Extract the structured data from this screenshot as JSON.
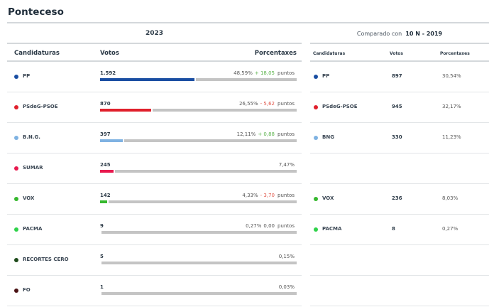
{
  "title": "Ponteceso",
  "current": {
    "year": "2023",
    "headers": {
      "parties": "Candidaturas",
      "votes": "Votos",
      "pct": "Porcentaxes"
    },
    "rows": [
      {
        "name": "PP",
        "color": "#1a4ea2",
        "votes": "1.592",
        "pct": "48,59%",
        "pct_value": 48.59,
        "diff": "+ 18,05",
        "diff_sign": "pos",
        "unit": "puntos"
      },
      {
        "name": "PSdeG-PSOE",
        "color": "#e0202c",
        "votes": "870",
        "pct": "26,55%",
        "pct_value": 26.55,
        "diff": "- 5,62",
        "diff_sign": "neg",
        "unit": "puntos"
      },
      {
        "name": "B.N.G.",
        "color": "#7fb2e2",
        "votes": "397",
        "pct": "12,11%",
        "pct_value": 12.11,
        "diff": "+ 0,88",
        "diff_sign": "pos",
        "unit": "puntos"
      },
      {
        "name": "SUMAR",
        "color": "#e8194e",
        "votes": "245",
        "pct": "7,47%",
        "pct_value": 7.47,
        "diff": "",
        "diff_sign": "",
        "unit": ""
      },
      {
        "name": "VOX",
        "color": "#36b82e",
        "votes": "142",
        "pct": "4,33%",
        "pct_value": 4.33,
        "diff": "- 3,70",
        "diff_sign": "neg",
        "unit": "puntos"
      },
      {
        "name": "PACMA",
        "color": "#2fd24a",
        "votes": "9",
        "pct": "0,27%",
        "pct_value": 0.27,
        "diff": "0,00",
        "diff_sign": "zero",
        "unit": "puntos"
      },
      {
        "name": "RECORTES CERO",
        "color": "#1d4a1a",
        "votes": "5",
        "pct": "0,15%",
        "pct_value": 0.15,
        "diff": "",
        "diff_sign": "",
        "unit": ""
      },
      {
        "name": "FO",
        "color": "#4a1214",
        "votes": "1",
        "pct": "0,03%",
        "pct_value": 0.03,
        "diff": "",
        "diff_sign": "",
        "unit": ""
      }
    ]
  },
  "compare": {
    "label": "Comparado con",
    "election": "10 N - 2019",
    "headers": {
      "parties": "Candidaturas",
      "votes": "Votos",
      "pct": "Porcentaxes"
    },
    "rows": [
      {
        "name": "PP",
        "color": "#1a4ea2",
        "votes": "897",
        "pct": "30,54%"
      },
      {
        "name": "PSdeG-PSOE",
        "color": "#e0202c",
        "votes": "945",
        "pct": "32,17%"
      },
      {
        "name": "BNG",
        "color": "#7fb2e2",
        "votes": "330",
        "pct": "11,23%"
      },
      null,
      {
        "name": "VOX",
        "color": "#36b82e",
        "votes": "236",
        "pct": "8,03%"
      },
      {
        "name": "PACMA",
        "color": "#2fd24a",
        "votes": "8",
        "pct": "0,27%"
      },
      null,
      null
    ]
  }
}
